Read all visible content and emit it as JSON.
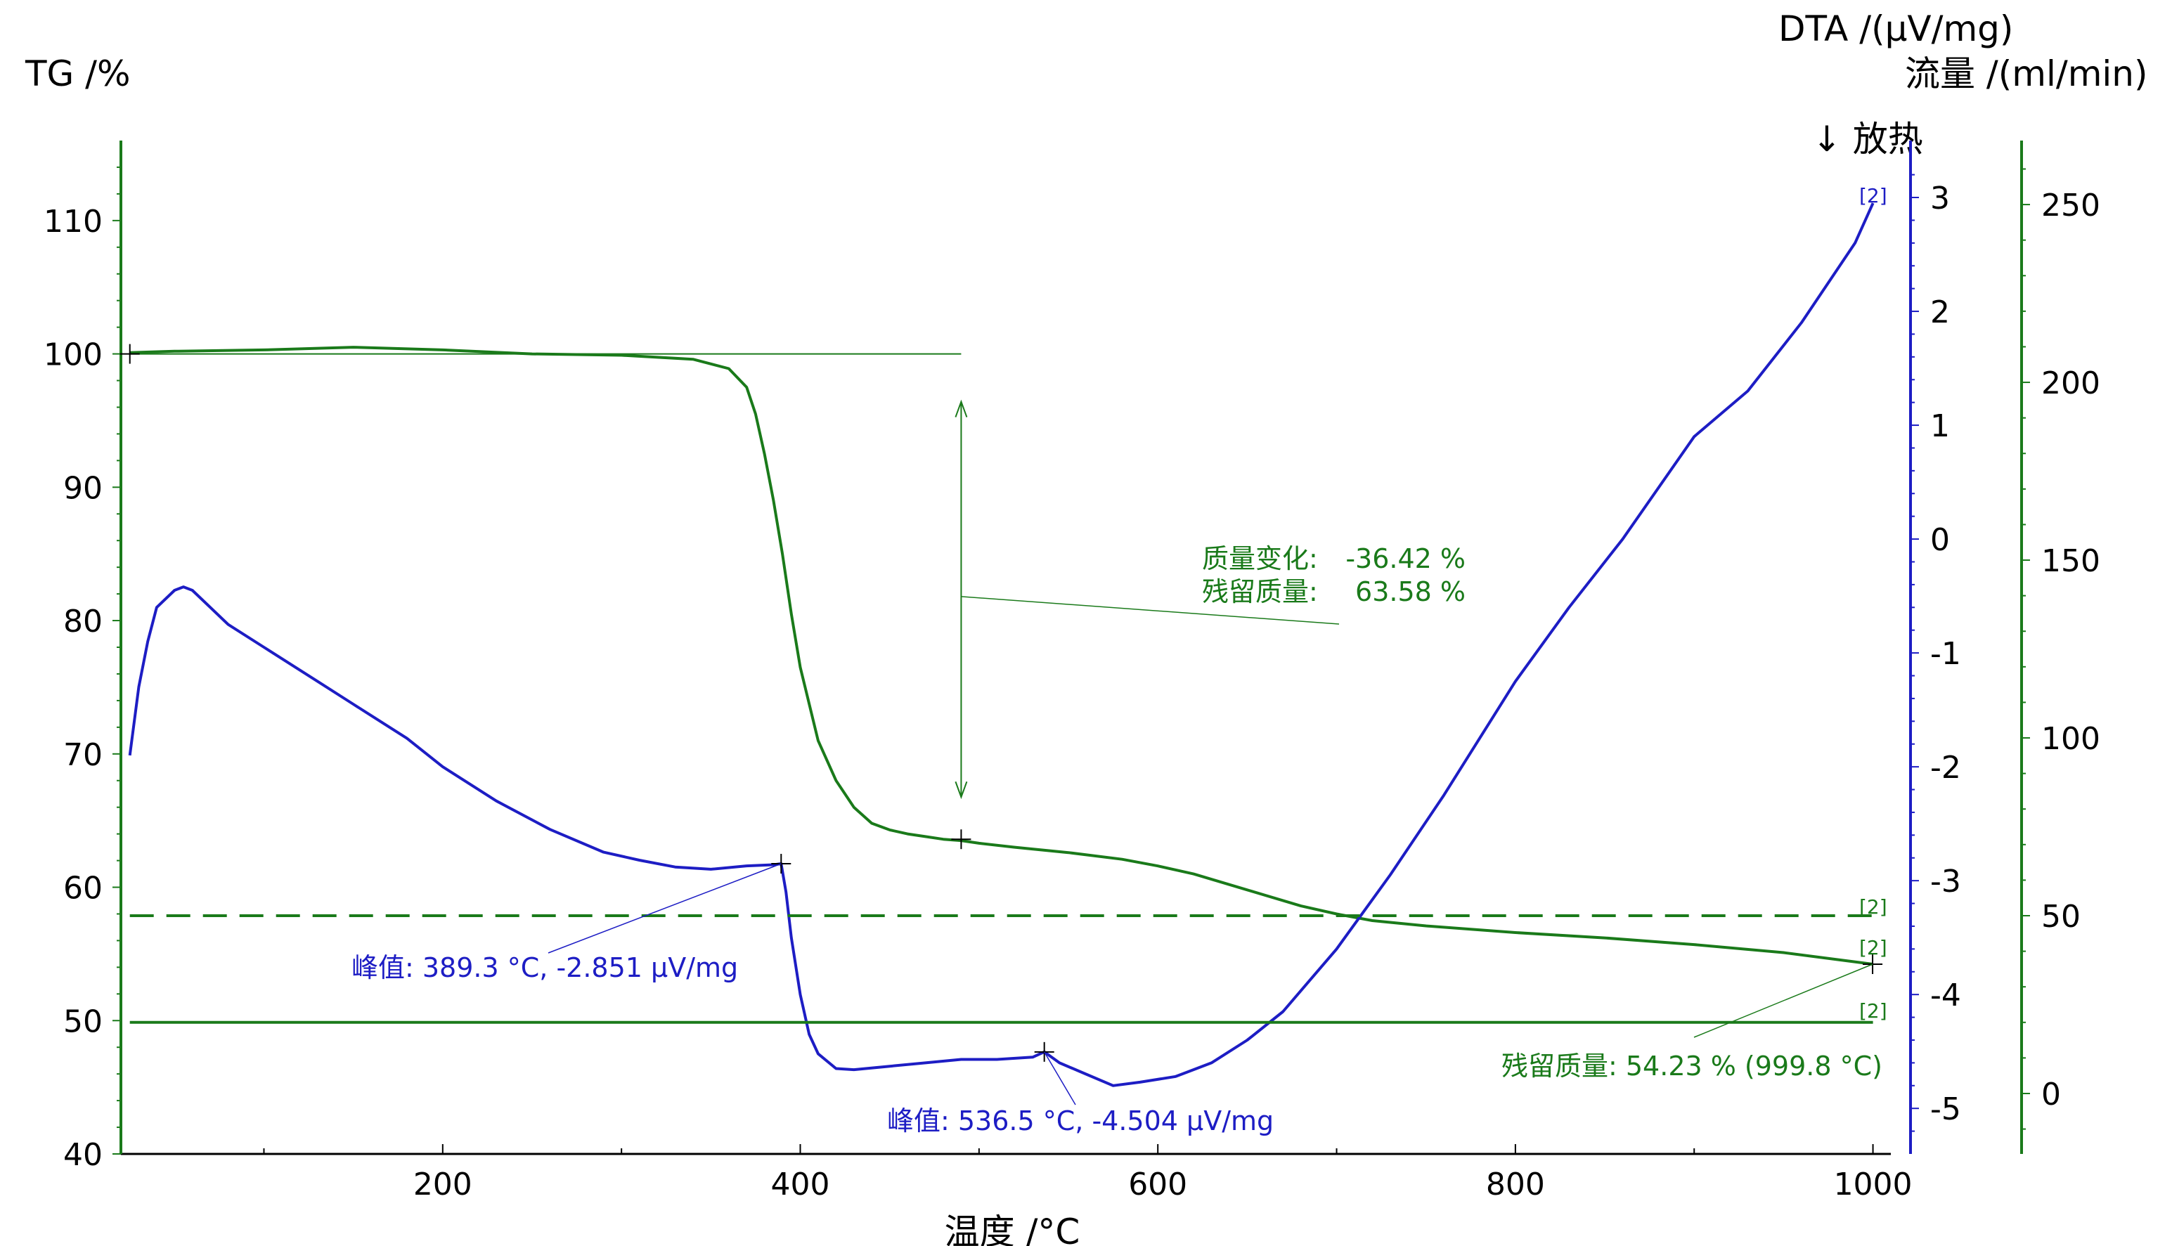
{
  "chart_data": {
    "type": "line",
    "title": "",
    "xlabel": "温度 /°C",
    "xlim": [
      20,
      1010
    ],
    "x_ticks": [
      200,
      400,
      600,
      800,
      1000
    ],
    "axes": {
      "tg": {
        "label": "TG /%",
        "ylim": [
          40,
          116
        ],
        "ticks": [
          40,
          50,
          60,
          70,
          80,
          90,
          100,
          110
        ],
        "color": "#1a7a1a"
      },
      "dta": {
        "label": "DTA /(μV/mg)",
        "ylim": [
          -5.4,
          3.5
        ],
        "ticks": [
          -5,
          -4,
          -3,
          -2,
          -1,
          0,
          1,
          2,
          3
        ],
        "color": "#1d1dc4"
      },
      "flow": {
        "label": "流量 /(ml/min)",
        "ylim": [
          -17,
          268
        ],
        "ticks": [
          0,
          50,
          100,
          150,
          200,
          250
        ],
        "color": "#1a7a1a"
      }
    },
    "exo_label": "↓ 放热",
    "series": [
      {
        "axis": "tg",
        "color": "#1a7a1a",
        "x": [
          25,
          50,
          100,
          150,
          200,
          250,
          300,
          340,
          360,
          370,
          375,
          380,
          385,
          390,
          395,
          400,
          410,
          420,
          430,
          440,
          450,
          460,
          470,
          480,
          490,
          500,
          520,
          550,
          580,
          600,
          620,
          650,
          680,
          700,
          720,
          750,
          800,
          850,
          900,
          950,
          1000
        ],
        "y": [
          100.1,
          100.2,
          100.3,
          100.5,
          100.3,
          100.0,
          99.9,
          99.6,
          98.9,
          97.5,
          95.5,
          92.5,
          89.0,
          85.0,
          80.5,
          76.5,
          71.0,
          68.0,
          66.0,
          64.8,
          64.3,
          64.0,
          63.8,
          63.6,
          63.5,
          63.3,
          63.0,
          62.6,
          62.1,
          61.6,
          61.0,
          59.8,
          58.6,
          58.0,
          57.5,
          57.1,
          56.6,
          56.2,
          55.7,
          55.1,
          54.23
        ]
      },
      {
        "axis": "dta",
        "color": "#1d1dc4",
        "x": [
          25,
          30,
          35,
          40,
          50,
          55,
          60,
          70,
          80,
          100,
          130,
          150,
          180,
          200,
          230,
          260,
          290,
          310,
          330,
          350,
          370,
          385,
          389.3,
          392,
          395,
          400,
          405,
          410,
          420,
          430,
          450,
          470,
          490,
          510,
          530,
          536.5,
          545,
          560,
          575,
          590,
          610,
          630,
          650,
          670,
          700,
          730,
          760,
          800,
          830,
          860,
          900,
          930,
          960,
          990,
          1000
        ],
        "y": [
          -1.9,
          -1.3,
          -0.9,
          -0.6,
          -0.45,
          -0.42,
          -0.45,
          -0.6,
          -0.75,
          -0.95,
          -1.25,
          -1.45,
          -1.75,
          -2.0,
          -2.3,
          -2.55,
          -2.75,
          -2.82,
          -2.88,
          -2.9,
          -2.87,
          -2.86,
          -2.851,
          -3.1,
          -3.5,
          -4.0,
          -4.35,
          -4.52,
          -4.65,
          -4.66,
          -4.63,
          -4.6,
          -4.57,
          -4.57,
          -4.55,
          -4.504,
          -4.6,
          -4.7,
          -4.8,
          -4.77,
          -4.72,
          -4.6,
          -4.4,
          -4.15,
          -3.6,
          -2.95,
          -2.25,
          -1.25,
          -0.6,
          0.0,
          0.9,
          1.3,
          1.9,
          2.6,
          2.95
        ]
      },
      {
        "axis": "flow",
        "color": "#1a7a1a",
        "dash": "dashed",
        "x": [
          25,
          1000
        ],
        "y": [
          50,
          50
        ],
        "tag": "[2]"
      },
      {
        "axis": "flow",
        "color": "#1a7a1a",
        "x": [
          25,
          1000
        ],
        "y": [
          20,
          20
        ],
        "tag": "[2]"
      }
    ],
    "annotations": {
      "mass_change_label": "质量变化:",
      "mass_change_value": "-36.42 %",
      "residual_label": "残留质量:",
      "residual_value": "63.58 %",
      "peak1": "峰值: 389.3 °C, -2.851 μV/mg",
      "peak2": "峰值: 536.5 °C, -4.504 μV/mg",
      "final_residual": "残留质量: 54.23 % (999.8 °C)",
      "tag_dta": "[2]",
      "tag_tg": "[2]"
    }
  }
}
